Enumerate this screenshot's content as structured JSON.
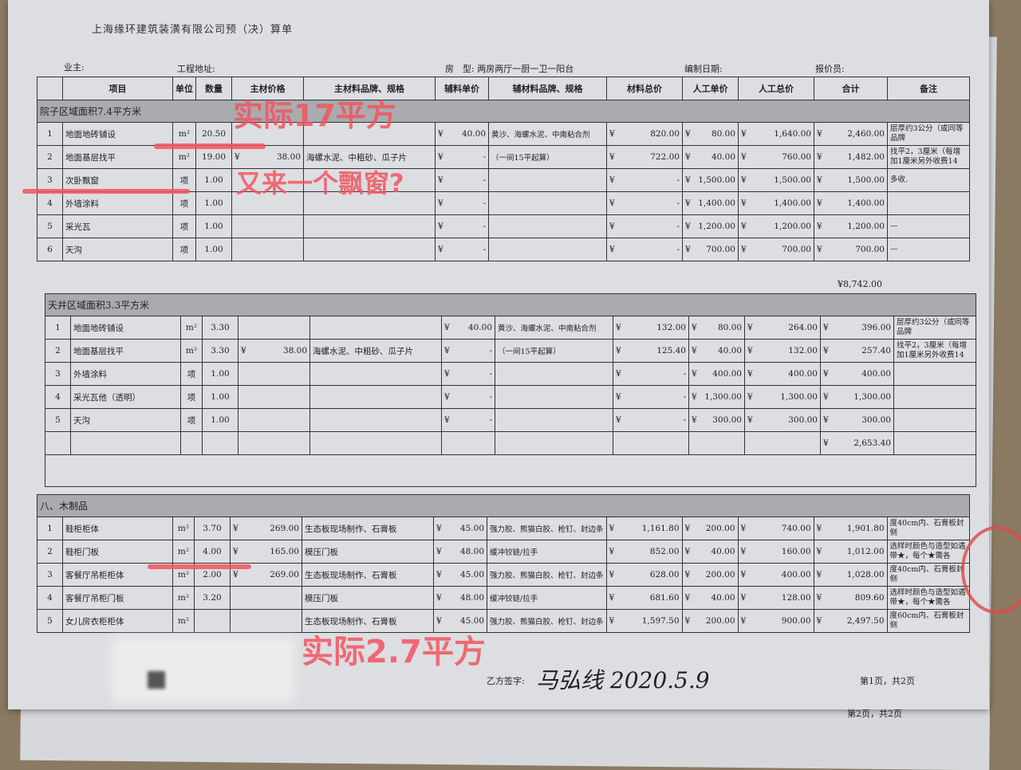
{
  "doc_title": "上海缘环建筑装潢有限公司预（决）算单",
  "header": {
    "owner_label": "业主:",
    "address_label": "工程地址:",
    "house_type": "房　型: 两房两厅一厨一卫一阳台",
    "date_label": "编制日期:",
    "quoter_label": "报价员:"
  },
  "columns": [
    "项目",
    "单位",
    "数量",
    "主材价格",
    "主材料品牌、规格",
    "辅料单价",
    "辅材料品牌、规格",
    "材料总价",
    "人工单价",
    "人工总价",
    "合计",
    "备注"
  ],
  "sections": [
    {
      "title": "院子区域面积7.4平方米",
      "rows": [
        [
          "1",
          "地面地砖铺设",
          "m²",
          "20.50",
          "",
          "",
          "40.00",
          "黄沙、海螺水泥、中南粘合剂",
          "820.00",
          "80.00",
          "1,640.00",
          "2,460.00",
          "层厚约3公分（或同等品牌"
        ],
        [
          "2",
          "地面基层找平",
          "m²",
          "19.00",
          "38.00",
          "海螺水泥、中粗砂、瓜子片",
          "-",
          "（一间15平起算）",
          "722.00",
          "40.00",
          "760.00",
          "1,482.00",
          "找平2，3厘米（每增加1厘米另外收费14"
        ],
        [
          "3",
          "次卧飘窗",
          "项",
          "1.00",
          "",
          "",
          "-",
          "",
          "-",
          "1,500.00",
          "1,500.00",
          "1,500.00",
          "多收."
        ],
        [
          "4",
          "外墙涂料",
          "项",
          "1.00",
          "",
          "",
          "-",
          "",
          "-",
          "1,400.00",
          "1,400.00",
          "1,400.00",
          ""
        ],
        [
          "5",
          "采光瓦",
          "项",
          "1.00",
          "",
          "",
          "-",
          "",
          "-",
          "1,200.00",
          "1,200.00",
          "1,200.00",
          "—"
        ],
        [
          "6",
          "天沟",
          "项",
          "1.00",
          "",
          "",
          "-",
          "",
          "-",
          "700.00",
          "700.00",
          "700.00",
          "—"
        ]
      ],
      "subtotal": "¥8,742.00"
    },
    {
      "title": "天井区域面积3.3平方米",
      "rows": [
        [
          "1",
          "地面地砖铺设",
          "m²",
          "3.30",
          "",
          "",
          "40.00",
          "黄沙、海螺水泥、中南粘合剂",
          "132.00",
          "80.00",
          "264.00",
          "396.00",
          "层厚约3公分（或同等品牌"
        ],
        [
          "2",
          "地面基层找平",
          "m²",
          "3.30",
          "38.00",
          "海螺水泥、中粗砂、瓜子片",
          "-",
          "（一间15平起算）",
          "125.40",
          "40.00",
          "132.00",
          "257.40",
          "找平2，3厘米（每增加1厘米另外收费14"
        ],
        [
          "3",
          "外墙涂料",
          "项",
          "1.00",
          "",
          "",
          "-",
          "",
          "-",
          "400.00",
          "400.00",
          "400.00",
          ""
        ],
        [
          "4",
          "采光瓦他（透明）",
          "项",
          "1.00",
          "",
          "",
          "-",
          "",
          "-",
          "1,300.00",
          "1,300.00",
          "1,300.00",
          ""
        ],
        [
          "5",
          "天沟",
          "项",
          "1.00",
          "",
          "",
          "-",
          "",
          "-",
          "300.00",
          "300.00",
          "300.00",
          ""
        ]
      ],
      "subtotal": "2,653.40"
    },
    {
      "title": "八、木制品",
      "rows": [
        [
          "1",
          "鞋柜柜体",
          "m²",
          "3.70",
          "269.00",
          "生态板现场制作、石膏板",
          "45.00",
          "强力胶、熊猫白胶、枪钉、封边条",
          "1,161.80",
          "200.00",
          "740.00",
          "1,901.80",
          "度40cm内、石膏板封侧"
        ],
        [
          "2",
          "鞋柜门板",
          "m²",
          "4.00",
          "165.00",
          "模压门板",
          "48.00",
          "缓冲铰链/拉手",
          "852.00",
          "40.00",
          "160.00",
          "1,012.00",
          "选样时颜色与造型如遇带★，每个★需各"
        ],
        [
          "3",
          "客餐厅吊柜柜体",
          "m²",
          "2.00",
          "269.00",
          "生态板现场制作、石膏板",
          "45.00",
          "强力胶、熊猫白胶、枪钉、封边条",
          "628.00",
          "200.00",
          "400.00",
          "1,028.00",
          "度40cm内、石膏板封侧"
        ],
        [
          "4",
          "客餐厅吊柜门板",
          "m²",
          "3.20",
          "",
          "模压门板",
          "48.00",
          "缓冲铰链/拉手",
          "681.60",
          "40.00",
          "128.00",
          "809.60",
          "选样时颜色与造型如遇带★，每个★需各"
        ],
        [
          "5",
          "女儿房衣柜柜体",
          "m²",
          "",
          "",
          "生态板现场制作、石膏板",
          "45.00",
          "强力胶、熊猫白胶、枪钉、封边条",
          "1,597.50",
          "200.00",
          "900.00",
          "2,497.50",
          "度60cm内、石膏板封侧"
        ]
      ]
    }
  ],
  "annotations": [
    "实际17平方",
    "又来一个飘窗?",
    "实际2.7平方"
  ],
  "footer": {
    "sign_label": "乙方签字:",
    "signature": "马弘线 2020.5.9",
    "page1": "第1页，共2页",
    "page2": "第2页，共2页"
  },
  "colors": {
    "annotation": "#f25560",
    "section_bg": "#a9abaf"
  }
}
